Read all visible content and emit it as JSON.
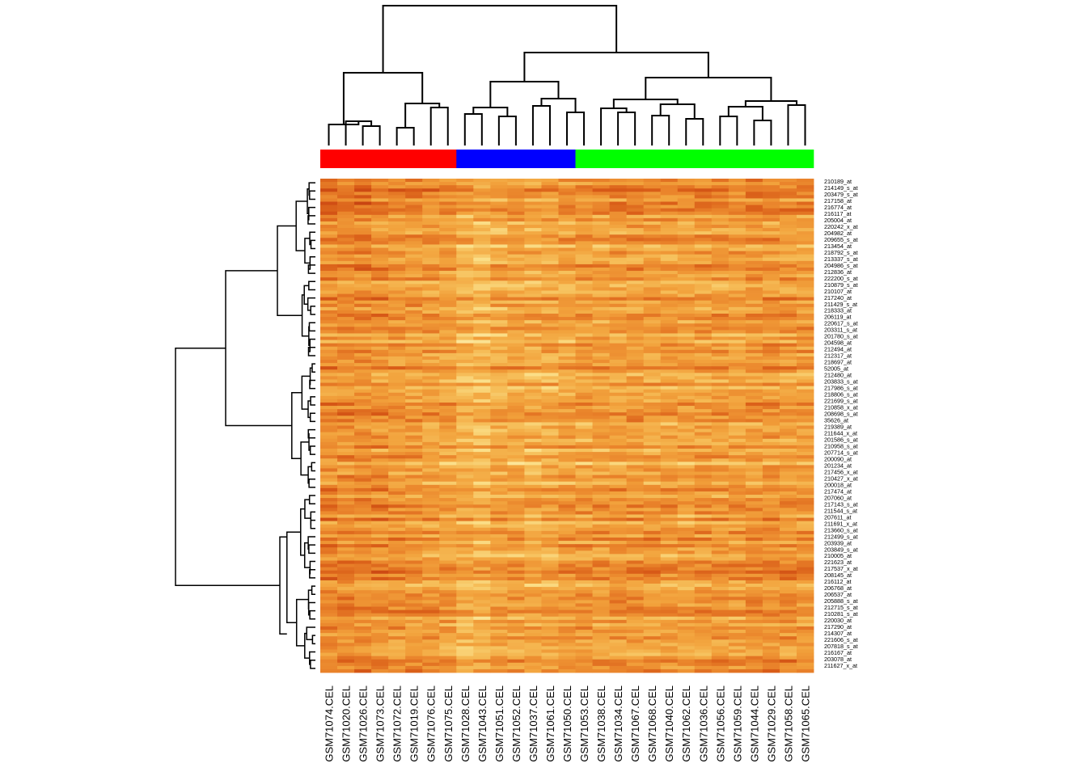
{
  "chart_data": {
    "type": "heatmap",
    "title": "",
    "xlabel": "",
    "ylabel": "",
    "colormap": [
      "#fffbe0",
      "#fbe08a",
      "#f6bf5a",
      "#f2a23c",
      "#e9822a",
      "#d85b17",
      "#b82b0c"
    ],
    "column_groups": [
      {
        "name": "",
        "color": "#ff0000",
        "columns": [
          "GSM71074.CEL",
          "GSM71020.CEL",
          "GSM71026.CEL",
          "GSM71073.CEL",
          "GSM71072.CEL",
          "GSM71019.CEL",
          "GSM71076.CEL",
          "GSM71075.CEL"
        ]
      },
      {
        "name": "",
        "color": "#0000ff",
        "columns": [
          "GSM71028.CEL",
          "GSM71043.CEL",
          "GSM71051.CEL",
          "GSM71052.CEL",
          "GSM71037.CEL",
          "GSM71061.CEL",
          "GSM71050.CEL"
        ]
      },
      {
        "name": "",
        "color": "#00ff00",
        "columns": [
          "GSM71053.CEL",
          "GSM71038.CEL",
          "GSM71034.CEL",
          "GSM71067.CEL",
          "GSM71068.CEL",
          "GSM71040.CEL",
          "GSM71062.CEL",
          "GSM71036.CEL",
          "GSM71056.CEL",
          "GSM71059.CEL",
          "GSM71044.CEL",
          "GSM71029.CEL",
          "GSM71058.CEL",
          "GSM71065.CEL"
        ]
      }
    ],
    "columns": [
      "GSM71074.CEL",
      "GSM71020.CEL",
      "GSM71026.CEL",
      "GSM71073.CEL",
      "GSM71072.CEL",
      "GSM71019.CEL",
      "GSM71076.CEL",
      "GSM71075.CEL",
      "GSM71028.CEL",
      "GSM71043.CEL",
      "GSM71051.CEL",
      "GSM71052.CEL",
      "GSM71037.CEL",
      "GSM71061.CEL",
      "GSM71050.CEL",
      "GSM71053.CEL",
      "GSM71038.CEL",
      "GSM71034.CEL",
      "GSM71067.CEL",
      "GSM71068.CEL",
      "GSM71040.CEL",
      "GSM71062.CEL",
      "GSM71036.CEL",
      "GSM71056.CEL",
      "GSM71059.CEL",
      "GSM71044.CEL",
      "GSM71029.CEL",
      "GSM71058.CEL",
      "GSM71065.CEL"
    ],
    "row_labels": [
      "210189_at",
      "214149_s_at",
      "203479_s_at",
      "217158_at",
      "216774_at",
      "216117_at",
      "205004_at",
      "220242_x_at",
      "204982_at",
      "209655_s_at",
      "213454_at",
      "218792_s_at",
      "213337_s_at",
      "204986_s_at",
      "212836_at",
      "222200_s_at",
      "210879_s_at",
      "210107_at",
      "217240_at",
      "211429_s_at",
      "218333_at",
      "206119_at",
      "220617_s_at",
      "203311_s_at",
      "201780_s_at",
      "204598_at",
      "212494_at",
      "212317_at",
      "218697_at",
      "52005_at",
      "212480_at",
      "203833_s_at",
      "217986_s_at",
      "218806_s_at",
      "221699_s_at",
      "210858_x_at",
      "208698_s_at",
      "35626_at",
      "219389_at",
      "211644_x_at",
      "201586_s_at",
      "210958_s_at",
      "207714_s_at",
      "200090_at",
      "201234_at",
      "217456_x_at",
      "210427_x_at",
      "200018_at",
      "217474_at",
      "207060_at",
      "217143_s_at",
      "211544_s_at",
      "207611_at",
      "211691_x_at",
      "213660_s_at",
      "212499_s_at",
      "203939_at",
      "203849_s_at",
      "210005_at",
      "221623_at",
      "217537_x_at",
      "208145_at",
      "216112_at",
      "206768_at",
      "206537_at",
      "205888_s_at",
      "212715_s_at",
      "210281_s_at",
      "220030_at",
      "217290_at",
      "214307_at",
      "221606_s_at",
      "207818_s_at",
      "216167_at",
      "203078_at",
      "211627_x_at"
    ],
    "column_intensity_profile": [
      0.68,
      0.72,
      0.74,
      0.66,
      0.6,
      0.58,
      0.52,
      0.5,
      0.3,
      0.25,
      0.4,
      0.45,
      0.38,
      0.42,
      0.48,
      0.52,
      0.5,
      0.55,
      0.58,
      0.56,
      0.5,
      0.48,
      0.55,
      0.52,
      0.5,
      0.6,
      0.62,
      0.58,
      0.55
    ],
    "row_block_profile": [
      {
        "rows": [
          0,
          0.07
        ],
        "level": 0.62
      },
      {
        "rows": [
          0.07,
          0.33
        ],
        "level": 0.5
      },
      {
        "rows": [
          0.33,
          0.5
        ],
        "level": 0.55
      },
      {
        "rows": [
          0.5,
          0.63
        ],
        "level": 0.42
      },
      {
        "rows": [
          0.63,
          1.0
        ],
        "level": 0.56
      }
    ]
  }
}
